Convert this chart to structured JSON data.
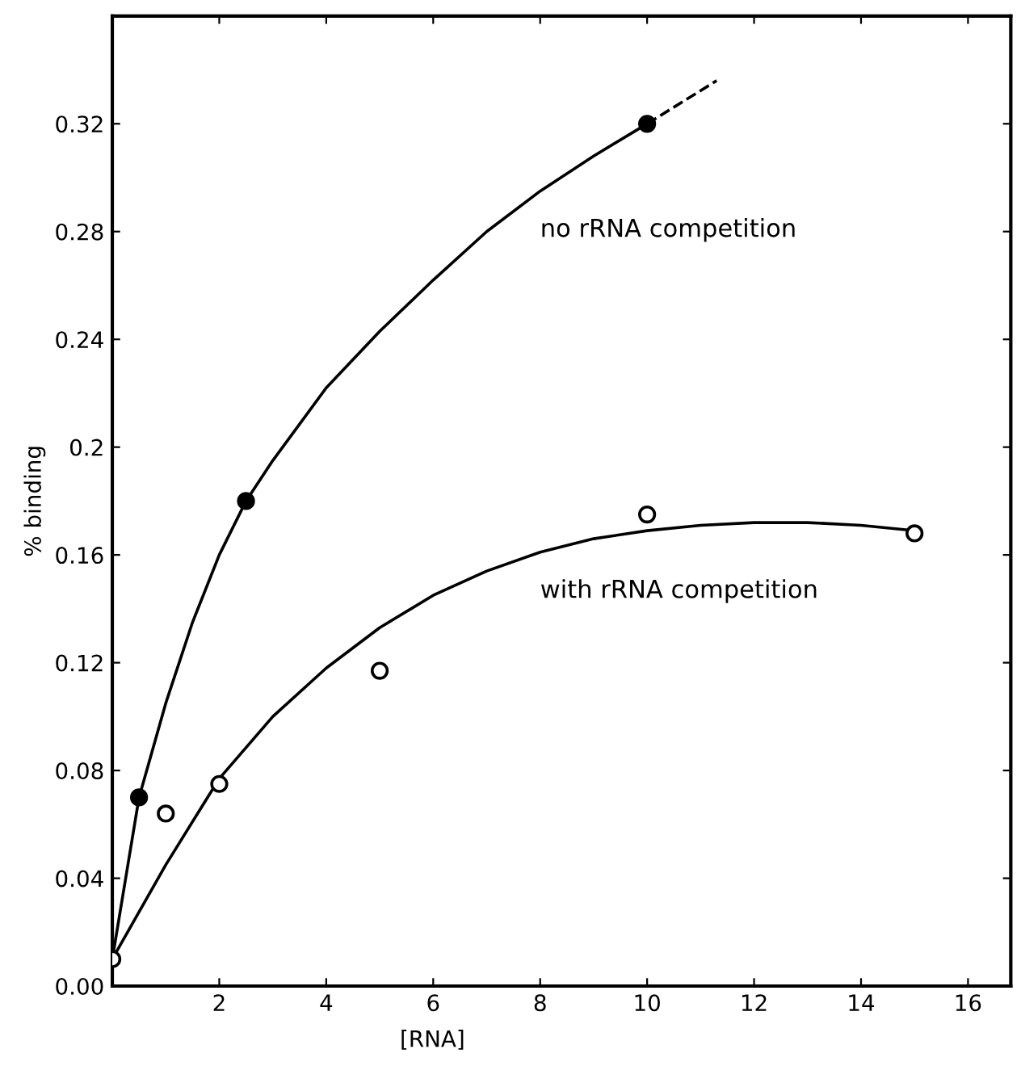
{
  "chart_data": {
    "type": "scatter",
    "xlabel": "[RNA]",
    "ylabel": "% binding",
    "xlim": [
      0,
      16.8
    ],
    "ylim": [
      0,
      0.36
    ],
    "xticks": [
      {
        "value": 0,
        "label": null
      },
      2,
      4,
      6,
      8,
      10,
      12,
      14,
      16
    ],
    "yticks": [
      {
        "value": 0,
        "label": "0.00"
      },
      0.04,
      0.08,
      0.12,
      0.16,
      0.2,
      0.24,
      0.28,
      0.32
    ],
    "grid": false,
    "legend": false,
    "marker": "none",
    "series": [
      {
        "type": "line",
        "name": "no rRNA competition",
        "color": "#000000",
        "line_style": "solid",
        "x": [
          0,
          0.25,
          0.5,
          1,
          1.5,
          2,
          2.5,
          3,
          4,
          5,
          6,
          7,
          8,
          9,
          10
        ],
        "values": [
          0.01,
          0.04,
          0.07,
          0.105,
          0.135,
          0.16,
          0.18,
          0.195,
          0.222,
          0.243,
          0.262,
          0.28,
          0.295,
          0.308,
          0.32
        ]
      },
      {
        "type": "line",
        "color": "#000000",
        "line_style": "dashed",
        "x": [
          10,
          11.3
        ],
        "values": [
          0.32,
          0.336
        ]
      },
      {
        "type": "line",
        "name": "with rRNA competition",
        "color": "#000000",
        "line_style": "solid",
        "x": [
          0,
          1,
          2,
          3,
          4,
          5,
          6,
          7,
          8,
          9,
          10,
          11,
          12,
          13,
          14,
          15
        ],
        "values": [
          0.01,
          0.045,
          0.077,
          0.1,
          0.118,
          0.133,
          0.145,
          0.154,
          0.161,
          0.166,
          0.169,
          0.171,
          0.172,
          0.172,
          0.171,
          0.169
        ]
      },
      {
        "color": "#000000",
        "marker": "circle",
        "x": [
          0.5,
          2.5,
          10
        ],
        "values": [
          0.07,
          0.18,
          0.32
        ]
      },
      {
        "color": "#ffffff",
        "marker": "circle",
        "x": [
          0,
          1,
          2,
          5,
          10,
          15
        ],
        "values": [
          0.01,
          0.064,
          0.075,
          0.117,
          0.175,
          0.168
        ]
      }
    ]
  }
}
